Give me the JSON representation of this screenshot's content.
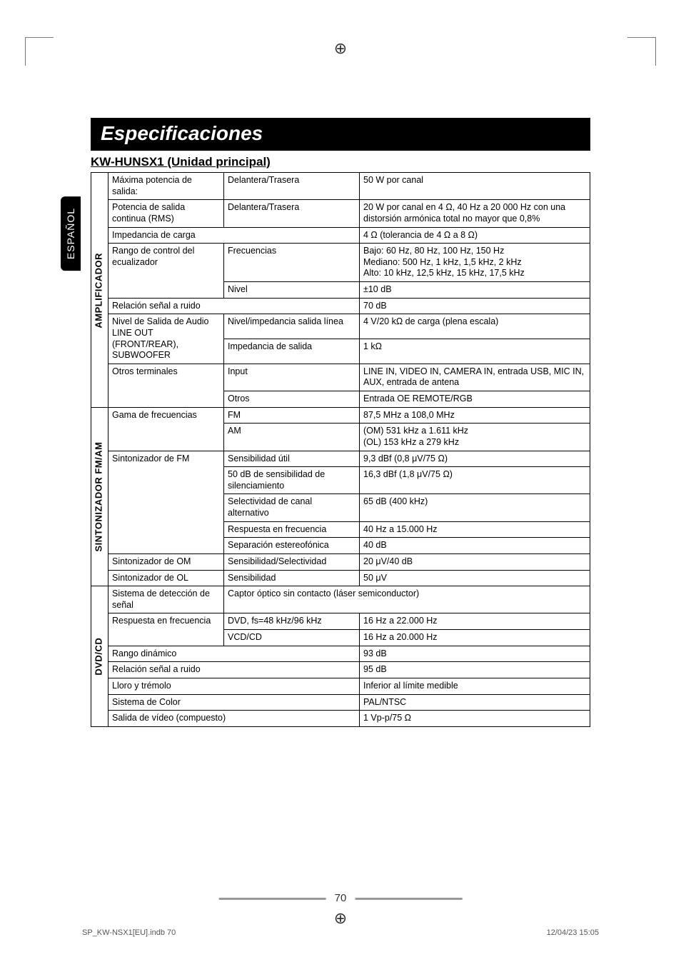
{
  "page": {
    "title": "Especificaciones",
    "subtitle": "KW-HUNSX1 (Unidad principal)",
    "side_tab": "ESPAÑOL",
    "page_num": "70",
    "footer_l": "SP_KW-NSX1[EU].indb   70",
    "footer_r": "12/04/23   15:05"
  },
  "sec": {
    "amp": "AMPLIFICADOR",
    "tuner": "SINTONIZADOR FM/AM",
    "dvd": "DVD/CD"
  },
  "amp": {
    "r1c1": "Máxima potencia de salida:",
    "r1c2": "Delantera/Trasera",
    "r1c3": "50 W por canal",
    "r2c1": "Potencia de salida continua (RMS)",
    "r2c2": "Delantera/Trasera",
    "r2c3": "20 W por canal en 4 Ω, 40 Hz a 20 000 Hz con una distorsión armónica total no mayor que 0,8%",
    "r3c1": "Impedancia de carga",
    "r3c3": "4 Ω (tolerancia de 4 Ω a 8 Ω)",
    "r4c1": "Rango de control del ecualizador",
    "r4c2": "Frecuencias",
    "r4c3": "Bajo: 60 Hz, 80 Hz, 100 Hz, 150 Hz\nMediano: 500 Hz, 1 kHz, 1,5 kHz, 2 kHz\nAlto: 10 kHz, 12,5 kHz, 15 kHz, 17,5 kHz",
    "r5c2": "Nivel",
    "r5c3": "±10 dB",
    "r6c1": "Relación señal a ruido",
    "r6c3": "70 dB",
    "r7c1": "Nivel de Salida de Audio LINE OUT (FRONT/REAR), SUBWOOFER",
    "r7c2": "Nivel/impedancia salida línea",
    "r7c3": "4 V/20 kΩ de carga (plena escala)",
    "r8c2": "Impedancia de salida",
    "r8c3": "1 kΩ",
    "r9c1": "Otros terminales",
    "r9c2": "Input",
    "r9c3": "LINE IN, VIDEO IN, CAMERA IN, entrada USB, MIC IN, AUX, entrada de antena",
    "r10c2": "Otros",
    "r10c3": "Entrada OE REMOTE/RGB"
  },
  "tuner": {
    "r1c1": "Gama de frecuencias",
    "r1c2": "FM",
    "r1c3": "87,5 MHz a 108,0 MHz",
    "r2c2": "AM",
    "r2c3": "(OM) 531 kHz a 1.611 kHz\n(OL) 153 kHz a 279 kHz",
    "r3c1": "Sintonizador de FM",
    "r3c2": "Sensibilidad útil",
    "r3c3": "9,3 dBf (0,8 μV/75 Ω)",
    "r4c2": "50 dB de sensibilidad de silenciamiento",
    "r4c3": "16,3 dBf (1,8 μV/75 Ω)",
    "r5c2": "Selectividad de canal alternativo",
    "r5c3": "65 dB (400 kHz)",
    "r6c2": "Respuesta en frecuencia",
    "r6c3": "40 Hz a 15.000 Hz",
    "r7c2": "Separación estereofónica",
    "r7c3": "40 dB",
    "r8c1": "Sintonizador de OM",
    "r8c2": "Sensibilidad/Selectividad",
    "r8c3": "20 μV/40 dB",
    "r9c1": "Sintonizador de OL",
    "r9c2": "Sensibilidad",
    "r9c3": "50 μV"
  },
  "dvd": {
    "r1c1": "Sistema de detección de señal",
    "r1c2": "Captor óptico sin contacto (láser semiconductor)",
    "r2c1": "Respuesta en frecuencia",
    "r2c2": "DVD, fs=48 kHz/96 kHz",
    "r2c3": "16 Hz a 22.000 Hz",
    "r3c2": "VCD/CD",
    "r3c3": "16 Hz a 20.000 Hz",
    "r4c1": "Rango dinámico",
    "r4c3": "93 dB",
    "r5c1": "Relación señal a ruido",
    "r5c3": "95 dB",
    "r6c1": "Lloro y trémolo",
    "r6c3": "Inferior al límite medible",
    "r7c1": "Sistema de Color",
    "r7c3": "PAL/NTSC",
    "r8c1": "Salida de vídeo (compuesto)",
    "r8c3": "1 Vp-p/75 Ω"
  }
}
